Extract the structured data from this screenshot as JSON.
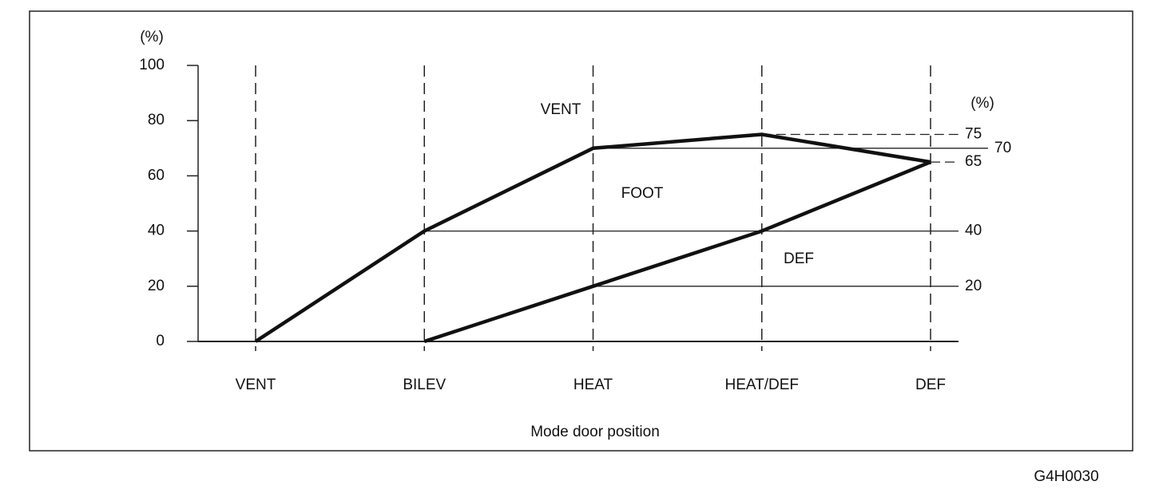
{
  "chart_data": {
    "type": "line",
    "y_unit": "(%)",
    "right_unit": "(%)",
    "x_label": "Mode door position",
    "figure_code": "G4H0030",
    "categories": [
      "VENT",
      "BILEV",
      "HEAT",
      "HEAT/DEF",
      "DEF"
    ],
    "series": [
      {
        "color": "#111111",
        "values": [
          0,
          40,
          70,
          75,
          65
        ]
      },
      {
        "color": "#111111",
        "values": [
          null,
          0,
          20,
          40,
          65
        ]
      }
    ],
    "ylim": [
      0,
      100
    ],
    "yticks": [
      0,
      20,
      40,
      60,
      80,
      100
    ],
    "right_labels": [
      75,
      70,
      65,
      40,
      20
    ],
    "annotations": [
      "VENT",
      "FOOT",
      "DEF"
    ]
  }
}
